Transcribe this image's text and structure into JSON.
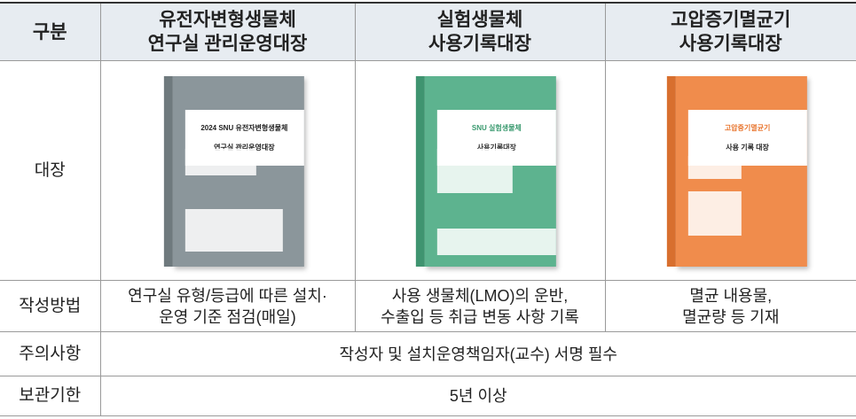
{
  "table": {
    "header": [
      "구분",
      "유전자변형생물체\n연구실 관리운영대장",
      "실험생물체\n사용기록대장",
      "고압증기멸균기\n사용기록대장"
    ],
    "ledger_row": {
      "label": "대장",
      "covers": [
        {
          "title_lines": [
            "2024 SNU 유전자변형생물체",
            "연구실 관리운영대장"
          ]
        },
        {
          "title_lines": [
            "SNU 실험생물체",
            "사용기록대장"
          ]
        },
        {
          "title_lines": [
            "고압증기멸균기",
            "사용 기록 대장"
          ]
        }
      ]
    },
    "method_row": {
      "label": "작성방법",
      "cells": [
        "연구실 유형/등급에 따른 설치·\n운영 기준 점검(매일)",
        "사용 생물체(LMO)의 운반,\n수출입 등 취급 변동 사항 기록",
        "멸균 내용물,\n멸균량 등 기재"
      ]
    },
    "caution_row": {
      "label": "주의사항",
      "text": "작성자 및 설치운영책임자(교수) 서명 필수"
    },
    "retention_row": {
      "label": "보관기한",
      "text": "5년 이상"
    }
  }
}
